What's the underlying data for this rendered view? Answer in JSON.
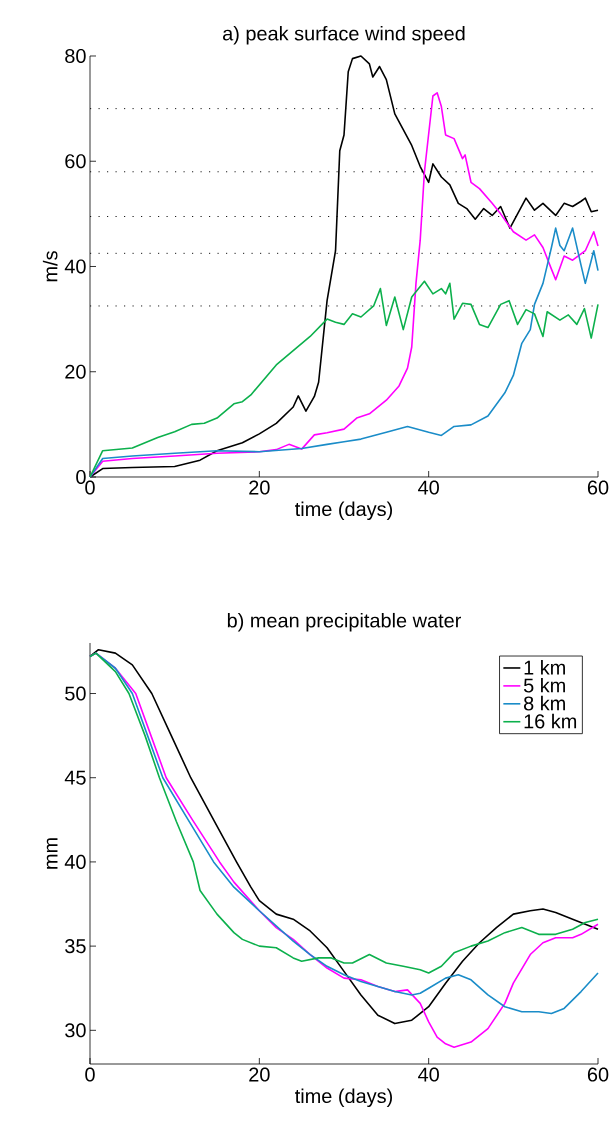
{
  "chart_data": [
    {
      "type": "line",
      "title": "a) peak surface wind speed",
      "xlabel": "time (days)",
      "ylabel": "m/s",
      "xlim": [
        0,
        60
      ],
      "ylim": [
        0,
        80
      ],
      "xticks": [
        0,
        20,
        40,
        60
      ],
      "yticks": [
        0,
        20,
        40,
        60,
        80
      ],
      "legend": false,
      "ref_lines": [
        {
          "axis": "y",
          "value": 70,
          "color": "#000000",
          "line_style": "dotted"
        },
        {
          "axis": "y",
          "value": 58,
          "color": "#000000",
          "line_style": "dotted"
        },
        {
          "axis": "y",
          "value": 49.5,
          "color": "#000000",
          "line_style": "dotted"
        },
        {
          "axis": "y",
          "value": 42.5,
          "color": "#000000",
          "line_style": "dotted"
        },
        {
          "axis": "y",
          "value": 32.5,
          "color": "#000000",
          "line_style": "dotted"
        }
      ],
      "series": [
        {
          "color": "#000000",
          "x": [
            0,
            1.5,
            5,
            10,
            13,
            15,
            18,
            20,
            22,
            24,
            24.6,
            25.5,
            26.5,
            27,
            28,
            29,
            29.5,
            30,
            30.5,
            31,
            32,
            33,
            33.4,
            34.2,
            35,
            36,
            37,
            38,
            39,
            40,
            40.5,
            41.5,
            42.5,
            43.5,
            44.5,
            45.5,
            46.5,
            47.5,
            48.5,
            49.6,
            50.5,
            51.5,
            52.5,
            53.5,
            55,
            56,
            57,
            58,
            58.5,
            59.2,
            60
          ],
          "values": [
            0,
            1.6,
            1.8,
            2,
            3.2,
            5,
            6.5,
            8.2,
            10.2,
            13.3,
            15.4,
            12.5,
            15.3,
            18,
            33.5,
            43,
            62,
            65,
            77,
            79.5,
            80,
            78.5,
            76,
            78,
            75.5,
            69,
            66,
            63,
            59,
            56,
            59.5,
            57,
            55.5,
            52,
            51,
            49,
            51,
            49.7,
            51.4,
            47.3,
            50,
            53,
            50.7,
            52,
            49.7,
            52,
            51.4,
            52.4,
            53,
            50.4,
            50.7
          ]
        },
        {
          "color": "#ff00ff",
          "x": [
            0,
            1.5,
            5,
            10,
            15,
            20,
            22,
            23.5,
            25,
            26.5,
            28,
            30,
            31.5,
            33,
            35,
            36.5,
            37.5,
            38,
            38.5,
            39,
            39.5,
            40.5,
            41,
            41.5,
            42,
            43,
            44,
            44.3,
            45,
            46,
            47.5,
            48.5,
            50,
            51.5,
            52.5,
            53.5,
            54.5,
            55,
            56,
            57,
            58.5,
            59.5,
            60
          ],
          "values": [
            0,
            3,
            3.5,
            4,
            4.5,
            4.8,
            5.2,
            6.2,
            5.3,
            8,
            8.4,
            9.1,
            11.2,
            12,
            14.6,
            17.3,
            20.7,
            24.7,
            36.8,
            45,
            58,
            72.4,
            73,
            70.4,
            65,
            64.3,
            60.5,
            61.2,
            56,
            54.8,
            52,
            50,
            46.6,
            45,
            46,
            43.6,
            39.5,
            37.5,
            42,
            41.2,
            43,
            46.6,
            43.9
          ]
        },
        {
          "color": "#1a8cc8",
          "x": [
            0,
            1.5,
            5,
            10,
            15,
            20,
            25,
            28,
            30,
            32,
            35,
            37.5,
            40,
            41.5,
            43,
            45,
            47,
            49,
            50,
            51,
            52,
            52.5,
            53.5,
            54.5,
            55,
            55.5,
            56,
            57,
            58,
            58.5,
            59.5,
            60
          ],
          "values": [
            0,
            3.5,
            4,
            4.5,
            5,
            4.8,
            5.4,
            6.2,
            6.7,
            7.2,
            8.5,
            9.6,
            8.5,
            7.9,
            9.6,
            9.9,
            11.6,
            16,
            19.3,
            25.4,
            28,
            32.8,
            36.8,
            43.6,
            47.3,
            44,
            43,
            47.3,
            40.2,
            36.8,
            43,
            39.2
          ]
        },
        {
          "color": "#0cb04c",
          "x": [
            0,
            1.5,
            5,
            8,
            10,
            12,
            13.5,
            15,
            17,
            18,
            19,
            22,
            24,
            26,
            28,
            29,
            30,
            31,
            32,
            33.5,
            34.3,
            35,
            36,
            37,
            38,
            39.5,
            40.5,
            41.5,
            42,
            42.5,
            43,
            44,
            45,
            46,
            47,
            48.5,
            49.5,
            50.5,
            51.5,
            52.5,
            53.5,
            54,
            55.5,
            56.5,
            57.5,
            58.4,
            59.2,
            60
          ],
          "values": [
            0,
            5,
            5.5,
            7.5,
            8.6,
            10,
            10.2,
            11.2,
            13.9,
            14.3,
            15.6,
            21.3,
            24,
            26.7,
            30,
            29.4,
            29,
            31,
            30.4,
            32.5,
            35.8,
            28.8,
            34.2,
            28,
            34.2,
            37.2,
            34.8,
            35.8,
            34.8,
            36.8,
            30,
            33,
            32.8,
            29,
            28.4,
            32.8,
            33.5,
            29,
            31.8,
            31,
            26.7,
            31.4,
            29.8,
            30.8,
            29,
            32,
            26.4,
            32.8
          ]
        }
      ]
    },
    {
      "type": "line",
      "title": "b) mean precipitable water",
      "xlabel": "time (days)",
      "ylabel": "mm",
      "xlim": [
        0,
        60
      ],
      "ylim": [
        28,
        53
      ],
      "xticks": [
        0,
        20,
        40,
        60
      ],
      "yticks": [
        30,
        35,
        40,
        45,
        50
      ],
      "legend": "top right",
      "series": [
        {
          "name": "1 km",
          "color": "#000000",
          "x": [
            0,
            1,
            3,
            5,
            7.3,
            9.6,
            11.9,
            14.6,
            17.3,
            19,
            20,
            22,
            24,
            26,
            28,
            30,
            32,
            34,
            36,
            38,
            40,
            42,
            44,
            46,
            48,
            50,
            52,
            53.5,
            55,
            57,
            60
          ],
          "values": [
            52.2,
            52.6,
            52.4,
            51.7,
            50,
            47.5,
            45,
            42.5,
            40,
            38.5,
            37.7,
            36.9,
            36.6,
            35.9,
            34.9,
            33.5,
            32.1,
            30.9,
            30.4,
            30.6,
            31.4,
            32.8,
            34.1,
            35.2,
            36.1,
            36.9,
            37.1,
            37.2,
            37,
            36.6,
            36
          ]
        },
        {
          "name": "5 km",
          "color": "#ff00ff",
          "x": [
            0,
            0.7,
            3,
            5.4,
            7.2,
            9,
            12.1,
            15.3,
            17,
            20,
            22,
            24,
            26,
            28,
            30,
            32,
            34,
            36,
            37.5,
            39,
            40,
            41,
            42,
            43,
            45,
            47,
            49,
            50,
            52,
            53.5,
            55,
            57,
            58,
            60
          ],
          "values": [
            52.2,
            52.4,
            51.5,
            50,
            47.5,
            45,
            42.5,
            40,
            38.8,
            37.1,
            36.1,
            35.4,
            34.5,
            33.7,
            33.1,
            33,
            32.6,
            32.3,
            32.4,
            31.6,
            30.5,
            29.6,
            29.2,
            29,
            29.3,
            30.1,
            31.6,
            32.8,
            34.5,
            35.2,
            35.5,
            35.5,
            35.7,
            36.3
          ]
        },
        {
          "name": "8 km",
          "color": "#1a8cc8",
          "x": [
            0,
            0.7,
            3,
            5,
            6.8,
            8.6,
            11.6,
            14.6,
            17,
            20,
            22,
            24,
            26,
            28,
            30,
            32,
            34,
            36,
            38,
            39,
            40,
            42,
            43.5,
            45,
            47,
            49,
            51,
            53,
            54.5,
            56,
            58,
            60
          ],
          "values": [
            52.2,
            52.4,
            51.5,
            50,
            47.5,
            45,
            42.5,
            40,
            38.5,
            37.1,
            36.2,
            35.3,
            34.5,
            33.8,
            33.3,
            32.9,
            32.6,
            32.3,
            32.1,
            32.2,
            32.5,
            33.1,
            33.3,
            33,
            32.1,
            31.4,
            31.1,
            31.1,
            31,
            31.3,
            32.3,
            33.4
          ]
        },
        {
          "name": "16 km",
          "color": "#0cb04c",
          "x": [
            0,
            0.7,
            3,
            4.6,
            6.5,
            8.2,
            10.2,
            12.2,
            13,
            15,
            17,
            18,
            20,
            22,
            24,
            25,
            27,
            28.5,
            30,
            31,
            33,
            35,
            37,
            39,
            40,
            41.5,
            43,
            45,
            47,
            49,
            51,
            53,
            55,
            57,
            58.5,
            60
          ],
          "values": [
            52.2,
            52.4,
            51.3,
            50,
            47.5,
            45,
            42.4,
            40,
            38.3,
            36.9,
            35.8,
            35.4,
            35,
            34.9,
            34.3,
            34.1,
            34.3,
            34.3,
            34,
            34,
            34.5,
            34,
            33.8,
            33.6,
            33.4,
            33.8,
            34.6,
            35,
            35.3,
            35.8,
            36.1,
            35.7,
            35.7,
            36,
            36.4,
            36.6
          ]
        }
      ]
    }
  ]
}
